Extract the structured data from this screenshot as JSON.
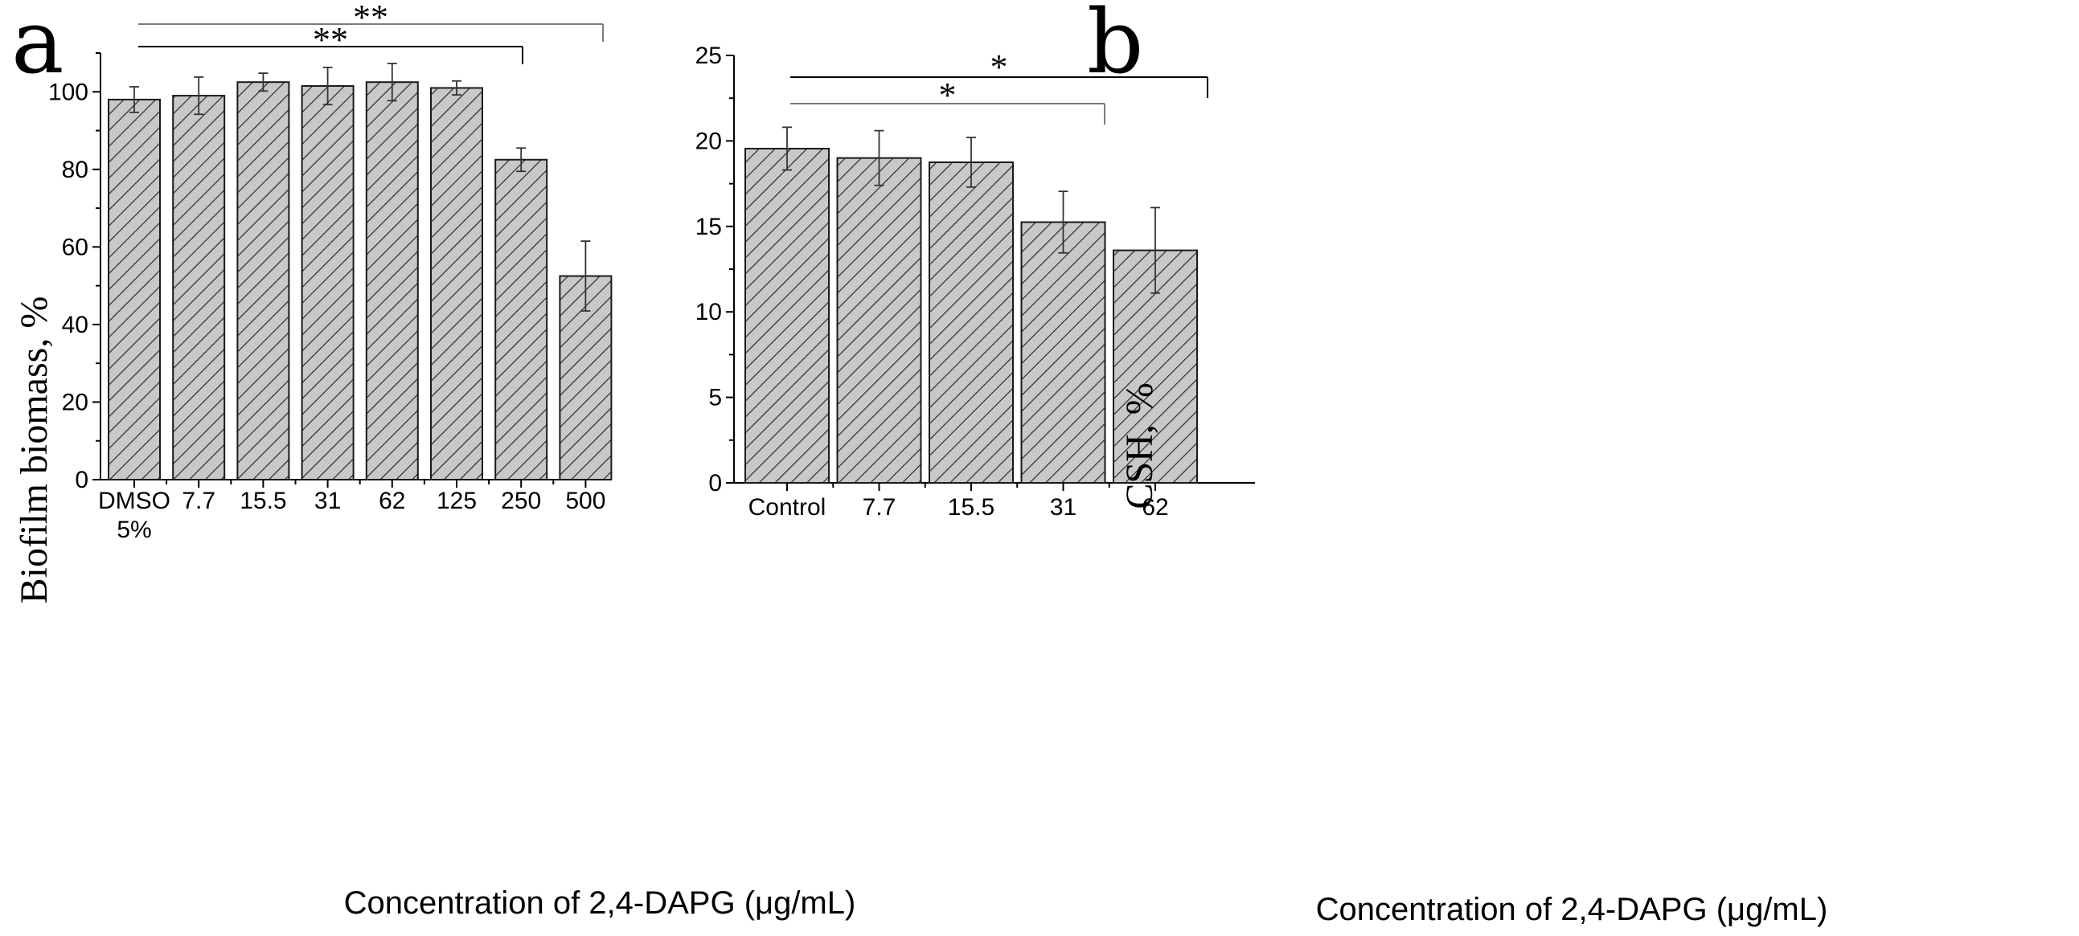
{
  "chart_data": [
    {
      "panel": "a",
      "type": "bar",
      "categories": [
        "DMSO 5%",
        "7.7",
        "15.5",
        "31",
        "62",
        "125",
        "250",
        "500"
      ],
      "category_lines": [
        [
          "DMSO",
          "5%"
        ],
        [
          "7.7"
        ],
        [
          "15.5"
        ],
        [
          "31"
        ],
        [
          "62"
        ],
        [
          "125"
        ],
        [
          "250"
        ],
        [
          "500"
        ]
      ],
      "values": [
        98,
        99,
        102.5,
        101.5,
        102.5,
        101,
        82.5,
        52.5
      ],
      "errors": [
        3.3,
        4.8,
        2.3,
        4.8,
        4.8,
        1.8,
        3,
        9
      ],
      "ylim": [
        0,
        110
      ],
      "yticks": [
        0,
        20,
        40,
        60,
        80,
        100
      ],
      "ylabel": "Biofilm biomass, %",
      "xlabel": "Concentration of 2,4-DAPG (μg/mL)",
      "significance": [
        {
          "from": 0,
          "to": 7,
          "label": "**",
          "color": "#7a7a7a"
        },
        {
          "from": 0,
          "to": 6,
          "label": "**",
          "color": "#000000"
        }
      ],
      "bar_fill": "#c8c8c8",
      "hatch_color": "#2a2a2a"
    },
    {
      "panel": "b",
      "type": "bar",
      "categories": [
        "Control",
        "7.7",
        "15.5",
        "31",
        "62"
      ],
      "category_lines": [
        [
          "Control"
        ],
        [
          "7.7"
        ],
        [
          "15.5"
        ],
        [
          "31"
        ],
        [
          "62"
        ]
      ],
      "values": [
        19.55,
        19,
        18.75,
        15.25,
        13.6
      ],
      "errors": [
        1.25,
        1.6,
        1.45,
        1.8,
        2.5
      ],
      "ylim": [
        0,
        25
      ],
      "yticks": [
        0,
        5,
        10,
        15,
        20,
        25
      ],
      "ylabel": "CSH, %",
      "xlabel": "Concentration of 2,4-DAPG (μg/mL)",
      "significance": [
        {
          "from": 0,
          "to": 4,
          "label": "*",
          "color": "#000000"
        },
        {
          "from": 0,
          "to": 3,
          "label": "*",
          "color": "#7a7a7a"
        }
      ],
      "bar_fill": "#c8c8c8",
      "hatch_color": "#2a2a2a"
    }
  ]
}
